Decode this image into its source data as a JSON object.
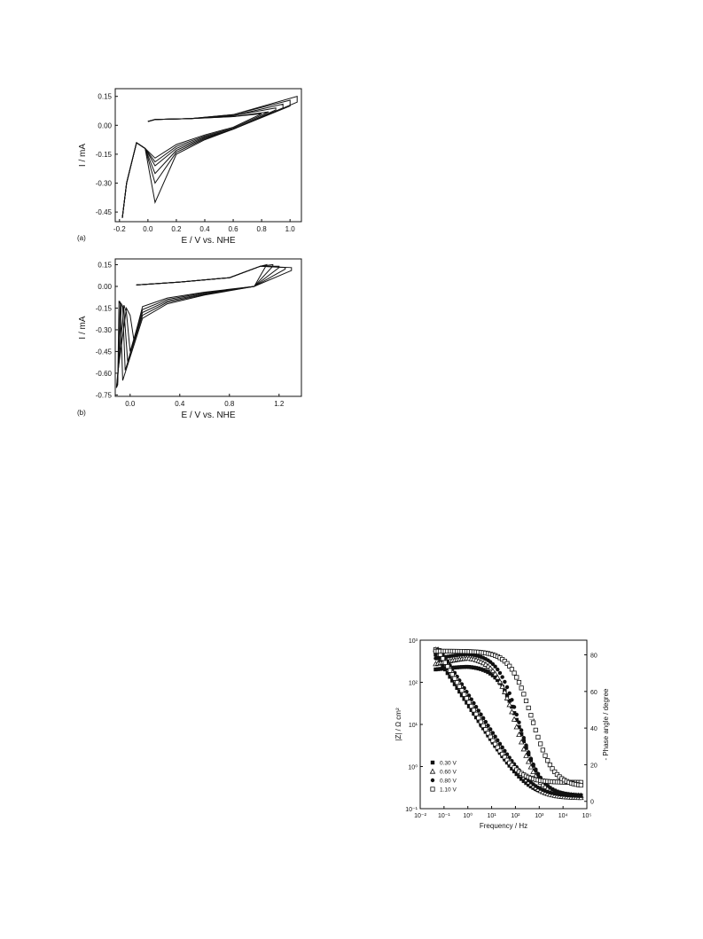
{
  "chart_data": [
    {
      "type": "line",
      "panel_label": "(a)",
      "xlabel": "E / V vs. NHE",
      "ylabel": "I / mA",
      "xlim": [
        -0.23,
        1.08
      ],
      "ylim": [
        -0.5,
        0.19
      ],
      "xticks": [
        -0.2,
        0.0,
        0.2,
        0.4,
        0.6,
        0.8,
        1.0
      ],
      "xtick_labels": [
        "-0.2",
        "0.0",
        "0.2",
        "0.4",
        "0.6",
        "0.8",
        "1.0"
      ],
      "yticks": [
        0.15,
        0.0,
        -0.15,
        -0.3,
        -0.45
      ],
      "ytick_labels": [
        "0.15",
        "0.00",
        "-0.15",
        "-0.30",
        "-0.45"
      ],
      "grid": false,
      "series": [
        {
          "anodic_limit": 0.8,
          "upper": [
            [
              0.0,
              0.02
            ],
            [
              0.05,
              0.03
            ],
            [
              0.3,
              0.035
            ],
            [
              0.6,
              0.045
            ],
            [
              0.8,
              0.06
            ]
          ],
          "lower": [
            [
              0.8,
              0.06
            ],
            [
              0.6,
              -0.01
            ],
            [
              0.4,
              -0.05
            ],
            [
              0.2,
              -0.1
            ],
            [
              0.05,
              -0.17
            ],
            [
              -0.02,
              -0.12
            ],
            [
              -0.08,
              -0.09
            ],
            [
              -0.15,
              -0.3
            ],
            [
              -0.18,
              -0.48
            ]
          ]
        },
        {
          "anodic_limit": 0.85,
          "upper": [
            [
              0.0,
              0.02
            ],
            [
              0.05,
              0.03
            ],
            [
              0.3,
              0.035
            ],
            [
              0.6,
              0.045
            ],
            [
              0.85,
              0.07
            ]
          ],
          "lower": [
            [
              0.85,
              0.07
            ],
            [
              0.6,
              -0.015
            ],
            [
              0.4,
              -0.055
            ],
            [
              0.2,
              -0.11
            ],
            [
              0.05,
              -0.19
            ],
            [
              -0.02,
              -0.12
            ],
            [
              -0.08,
              -0.09
            ],
            [
              -0.15,
              -0.3
            ],
            [
              -0.18,
              -0.48
            ]
          ]
        },
        {
          "anodic_limit": 0.9,
          "upper": [
            [
              0.0,
              0.02
            ],
            [
              0.05,
              0.03
            ],
            [
              0.3,
              0.035
            ],
            [
              0.6,
              0.05
            ],
            [
              0.9,
              0.09
            ]
          ],
          "lower": [
            [
              0.9,
              0.08
            ],
            [
              0.6,
              -0.02
            ],
            [
              0.4,
              -0.06
            ],
            [
              0.2,
              -0.12
            ],
            [
              0.05,
              -0.21
            ],
            [
              -0.02,
              -0.12
            ],
            [
              -0.08,
              -0.09
            ],
            [
              -0.15,
              -0.3
            ],
            [
              -0.18,
              -0.48
            ]
          ]
        },
        {
          "anodic_limit": 0.95,
          "upper": [
            [
              0.0,
              0.02
            ],
            [
              0.05,
              0.03
            ],
            [
              0.3,
              0.035
            ],
            [
              0.6,
              0.05
            ],
            [
              0.95,
              0.11
            ]
          ],
          "lower": [
            [
              0.95,
              0.09
            ],
            [
              0.6,
              -0.02
            ],
            [
              0.4,
              -0.065
            ],
            [
              0.2,
              -0.13
            ],
            [
              0.05,
              -0.25
            ],
            [
              -0.02,
              -0.12
            ],
            [
              -0.08,
              -0.09
            ],
            [
              -0.15,
              -0.3
            ],
            [
              -0.18,
              -0.48
            ]
          ]
        },
        {
          "anodic_limit": 1.0,
          "upper": [
            [
              0.0,
              0.02
            ],
            [
              0.05,
              0.03
            ],
            [
              0.3,
              0.035
            ],
            [
              0.6,
              0.055
            ],
            [
              1.0,
              0.13
            ]
          ],
          "lower": [
            [
              1.0,
              0.1
            ],
            [
              0.6,
              -0.02
            ],
            [
              0.4,
              -0.07
            ],
            [
              0.2,
              -0.14
            ],
            [
              0.05,
              -0.3
            ],
            [
              -0.02,
              -0.12
            ],
            [
              -0.08,
              -0.09
            ],
            [
              -0.15,
              -0.3
            ],
            [
              -0.18,
              -0.48
            ]
          ]
        },
        {
          "anodic_limit": 1.05,
          "upper": [
            [
              0.0,
              0.02
            ],
            [
              0.05,
              0.03
            ],
            [
              0.3,
              0.035
            ],
            [
              0.6,
              0.055
            ],
            [
              1.05,
              0.15
            ]
          ],
          "lower": [
            [
              1.05,
              0.12
            ],
            [
              0.6,
              -0.02
            ],
            [
              0.4,
              -0.075
            ],
            [
              0.2,
              -0.15
            ],
            [
              0.05,
              -0.4
            ],
            [
              -0.02,
              -0.12
            ],
            [
              -0.08,
              -0.09
            ],
            [
              -0.15,
              -0.3
            ],
            [
              -0.18,
              -0.48
            ]
          ]
        }
      ]
    },
    {
      "type": "line",
      "panel_label": "(b)",
      "xlabel": "E / V vs. NHE",
      "ylabel": "I / mA",
      "xlim": [
        -0.12,
        1.38
      ],
      "ylim": [
        -0.76,
        0.19
      ],
      "xticks": [
        0.0,
        0.4,
        0.8,
        1.2
      ],
      "xtick_labels": [
        "0.0",
        "0.4",
        "0.8",
        "1.2"
      ],
      "yticks": [
        0.15,
        0.0,
        -0.15,
        -0.3,
        -0.45,
        -0.6,
        -0.75
      ],
      "ytick_labels": [
        "0.15",
        "0.00",
        "-0.15",
        "-0.30",
        "-0.45",
        "-0.60",
        "-0.75"
      ],
      "grid": false,
      "series": [
        {
          "anodic_limit": 1.1,
          "upper": [
            [
              0.05,
              0.01
            ],
            [
              0.4,
              0.03
            ],
            [
              0.8,
              0.06
            ],
            [
              1.05,
              0.14
            ],
            [
              1.1,
              0.15
            ]
          ],
          "lower": [
            [
              1.1,
              0.15
            ],
            [
              1.0,
              0.0
            ],
            [
              0.6,
              -0.04
            ],
            [
              0.3,
              -0.08
            ],
            [
              0.1,
              -0.14
            ],
            [
              0.03,
              -0.37
            ],
            [
              0.0,
              -0.2
            ],
            [
              -0.03,
              -0.15
            ],
            [
              -0.1,
              -0.6
            ],
            [
              -0.11,
              -0.7
            ]
          ]
        },
        {
          "anodic_limit": 1.15,
          "upper": [
            [
              0.05,
              0.01
            ],
            [
              0.4,
              0.03
            ],
            [
              0.8,
              0.06
            ],
            [
              1.05,
              0.14
            ],
            [
              1.15,
              0.15
            ]
          ],
          "lower": [
            [
              1.15,
              0.14
            ],
            [
              1.0,
              0.0
            ],
            [
              0.6,
              -0.045
            ],
            [
              0.3,
              -0.09
            ],
            [
              0.1,
              -0.16
            ],
            [
              0.0,
              -0.45
            ],
            [
              -0.03,
              -0.18
            ],
            [
              -0.05,
              -0.13
            ],
            [
              -0.1,
              -0.62
            ],
            [
              -0.11,
              -0.7
            ]
          ]
        },
        {
          "anodic_limit": 1.2,
          "upper": [
            [
              0.05,
              0.01
            ],
            [
              0.4,
              0.03
            ],
            [
              0.8,
              0.06
            ],
            [
              1.05,
              0.14
            ],
            [
              1.2,
              0.14
            ]
          ],
          "lower": [
            [
              1.2,
              0.13
            ],
            [
              1.0,
              0.0
            ],
            [
              0.6,
              -0.05
            ],
            [
              0.3,
              -0.1
            ],
            [
              0.1,
              -0.18
            ],
            [
              -0.02,
              -0.52
            ],
            [
              -0.05,
              -0.16
            ],
            [
              -0.07,
              -0.12
            ],
            [
              -0.1,
              -0.64
            ],
            [
              -0.11,
              -0.7
            ]
          ]
        },
        {
          "anodic_limit": 1.25,
          "upper": [
            [
              0.05,
              0.01
            ],
            [
              0.4,
              0.03
            ],
            [
              0.8,
              0.06
            ],
            [
              1.05,
              0.14
            ],
            [
              1.25,
              0.13
            ]
          ],
          "lower": [
            [
              1.25,
              0.12
            ],
            [
              1.0,
              0.0
            ],
            [
              0.6,
              -0.055
            ],
            [
              0.3,
              -0.11
            ],
            [
              0.1,
              -0.2
            ],
            [
              -0.04,
              -0.58
            ],
            [
              -0.06,
              -0.14
            ],
            [
              -0.08,
              -0.11
            ],
            [
              -0.1,
              -0.66
            ],
            [
              -0.11,
              -0.7
            ]
          ]
        },
        {
          "anodic_limit": 1.3,
          "upper": [
            [
              0.05,
              0.01
            ],
            [
              0.4,
              0.03
            ],
            [
              0.8,
              0.06
            ],
            [
              1.05,
              0.14
            ],
            [
              1.3,
              0.13
            ]
          ],
          "lower": [
            [
              1.3,
              0.11
            ],
            [
              1.0,
              0.0
            ],
            [
              0.6,
              -0.06
            ],
            [
              0.3,
              -0.12
            ],
            [
              0.1,
              -0.22
            ],
            [
              -0.06,
              -0.65
            ],
            [
              -0.08,
              -0.12
            ],
            [
              -0.09,
              -0.1
            ],
            [
              -0.1,
              -0.68
            ],
            [
              -0.11,
              -0.7
            ]
          ]
        }
      ]
    },
    {
      "type": "scatter",
      "xlabel": "Frequency / Hz",
      "ylabel": "|Z| / Ω cm²",
      "ylabel_right": "- Phase angle / degree",
      "x_scale": "log",
      "y_scale": "log",
      "xlim": [
        0.01,
        100000
      ],
      "ylim": [
        0.1,
        1000
      ],
      "ylim_right": [
        -4,
        88
      ],
      "xtick_labels": [
        "10⁻²",
        "10⁻¹",
        "10⁰",
        "10¹",
        "10²",
        "10³",
        "10⁴",
        "10⁵"
      ],
      "xticks": [
        0.01,
        0.1,
        1,
        10,
        100,
        1000,
        10000,
        100000
      ],
      "ytick_labels": [
        "10⁻¹",
        "10⁰",
        "10¹",
        "10²",
        "10³"
      ],
      "yticks": [
        0.1,
        1,
        10,
        100,
        1000
      ],
      "yticks_right": [
        0,
        20,
        40,
        60,
        80
      ],
      "ytick_labels_right": [
        "0",
        "20",
        "40",
        "60",
        "80"
      ],
      "legend": {
        "position": "bottom-left",
        "entries": [
          "0.30 V",
          "0.60 V",
          "0.80 V",
          "1.10 V"
        ]
      },
      "annotations": [
        {
          "text": "←",
          "meaning": "arrow pointing to left axis",
          "x": 4,
          "y": 8
        },
        {
          "text": "→",
          "meaning": "arrow pointing to right axis",
          "x": 500,
          "y": 12
        }
      ],
      "series": [
        {
          "name": "0.30 V",
          "marker": "filled-square",
          "modulus": {
            "f0": 0.25,
            "R": 0.2,
            "slope": 0.88
          },
          "phase": {
            "start": 72,
            "peak": 74,
            "f_mid": 160,
            "width": 1.0,
            "tail": 3
          }
        },
        {
          "name": "0.60 V",
          "marker": "open-triangle",
          "modulus": {
            "f0": 0.45,
            "R": 0.18,
            "slope": 0.9
          },
          "phase": {
            "start": 75,
            "peak": 79,
            "f_mid": 110,
            "width": 1.0,
            "tail": 3
          }
        },
        {
          "name": "0.80 V",
          "marker": "filled-circle",
          "modulus": {
            "f0": 0.5,
            "R": 0.2,
            "slope": 0.9
          },
          "phase": {
            "start": 78,
            "peak": 81,
            "f_mid": 150,
            "width": 1.0,
            "tail": 3
          }
        },
        {
          "name": "1.10 V",
          "marker": "open-square",
          "modulus": {
            "f0": 0.35,
            "R": 0.42,
            "slope": 0.95
          },
          "phase": {
            "start": 82,
            "peak": 82,
            "f_mid": 500,
            "width": 1.0,
            "tail": 8
          }
        }
      ]
    }
  ]
}
